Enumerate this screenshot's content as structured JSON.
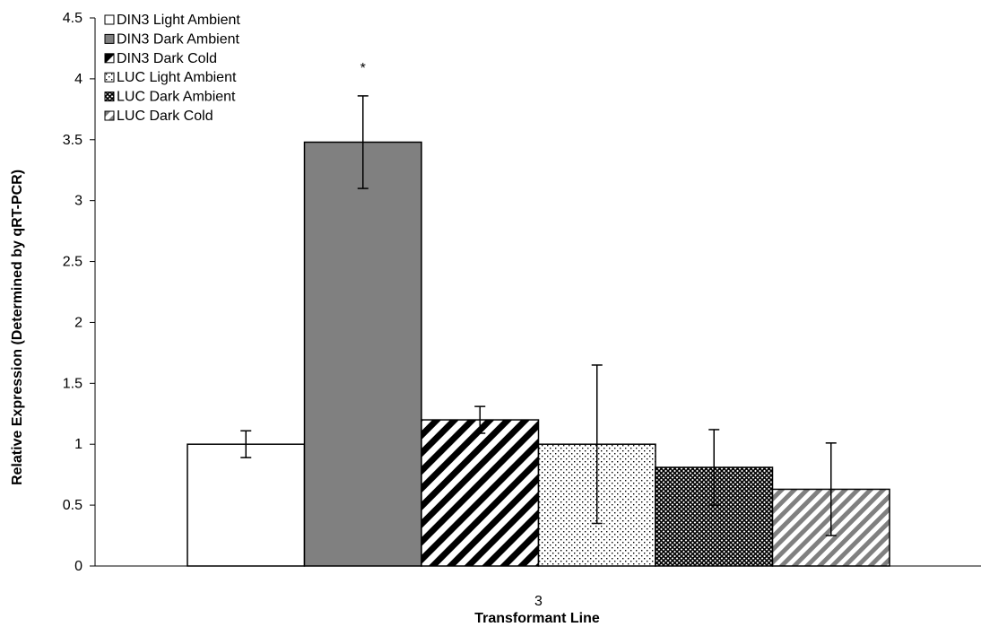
{
  "chart_data": {
    "type": "bar",
    "categories": [
      "3"
    ],
    "xlabel": "Transformant Line",
    "ylabel": "Relative Expression (Determined by qRT-PCR)",
    "ylim": [
      0,
      4.5
    ],
    "yticks": [
      "0",
      "0.5",
      "1",
      "1.5",
      "2",
      "2.5",
      "3",
      "3.5",
      "4",
      "4.5"
    ],
    "grid": false,
    "legend_position": "top-left",
    "series": [
      {
        "name": "DIN3 Light Ambient",
        "values": [
          1.0
        ],
        "error": [
          0.11
        ],
        "fill": "white",
        "color": "#ffffff"
      },
      {
        "name": "DIN3 Dark Ambient",
        "values": [
          3.48
        ],
        "error": [
          0.38
        ],
        "fill": "solid-gray",
        "color": "#808080",
        "annotation": "*"
      },
      {
        "name": "DIN3 Dark Cold",
        "values": [
          1.2
        ],
        "error": [
          0.11
        ],
        "fill": "wide-diagonal-stripes",
        "color": "#000000"
      },
      {
        "name": "LUC Light Ambient",
        "values": [
          1.0
        ],
        "error": [
          0.65
        ],
        "fill": "dotted",
        "color": "#000000"
      },
      {
        "name": "LUC Dark Ambient",
        "values": [
          0.81
        ],
        "error": [
          0.31
        ],
        "fill": "crosshatch",
        "color": "#000000"
      },
      {
        "name": "LUC Dark Cold",
        "values": [
          0.63
        ],
        "error": [
          0.38
        ],
        "fill": "gray-diagonal-stripes",
        "color": "#808080"
      }
    ]
  }
}
